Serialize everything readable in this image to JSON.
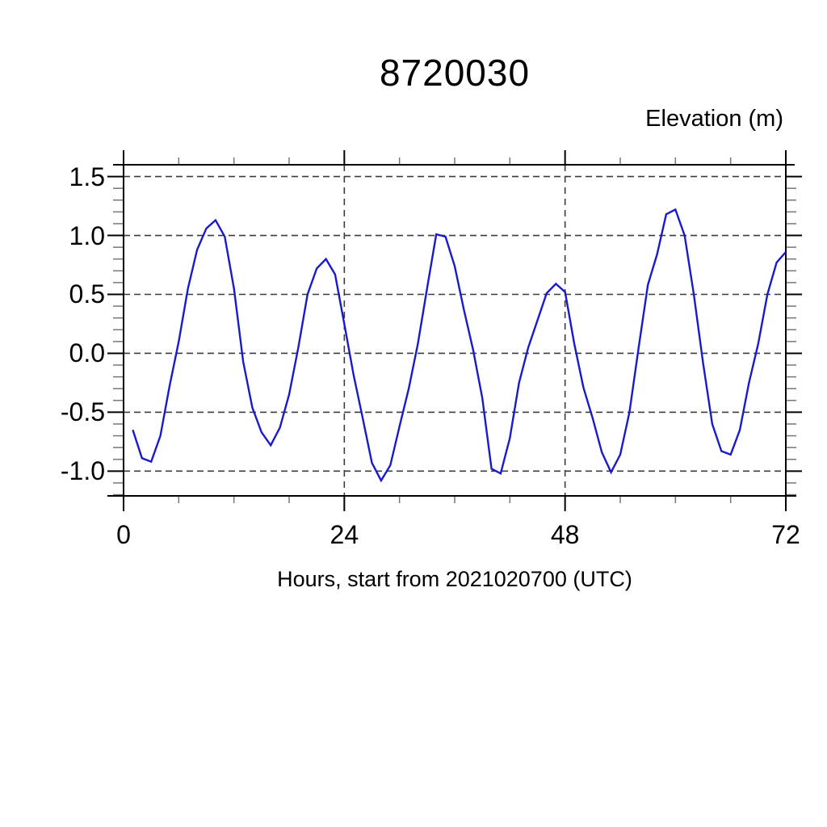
{
  "page": {
    "background": "#ffffff"
  },
  "chart_data": {
    "type": "line",
    "title": "8720030",
    "right_axis_label": "Elevation (m)",
    "xlabel": "Hours, start from 2021020700 (UTC)",
    "xlim": [
      0,
      72
    ],
    "ylim": [
      -1.21,
      1.6
    ],
    "xticks_major": [
      0,
      24,
      48,
      72
    ],
    "xtick_labels": [
      "0",
      "24",
      "48",
      "72"
    ],
    "xtick_minor_step": 6,
    "yticks_major": [
      1.5,
      1.0,
      0.5,
      0.0,
      -0.5,
      -1.0
    ],
    "ytick_labels": [
      "1.5",
      "1.0",
      "0.5",
      "0.0",
      "-0.5",
      "-1.0"
    ],
    "ytick_minor_step": 0.1,
    "grid": {
      "horizontal_at": [
        1.5,
        1.0,
        0.5,
        0.0,
        -0.5,
        -1.0
      ],
      "vertical_at": [
        24,
        48
      ],
      "style": "dashed",
      "color": "#3c3c3c"
    },
    "axis_color": "#000000",
    "series": [
      {
        "name": "elevation",
        "color": "#1a1acd",
        "hours": [
          1,
          2,
          3,
          4,
          5,
          6,
          7,
          8,
          9,
          10,
          11,
          12,
          13,
          14,
          15,
          16,
          17,
          18,
          19,
          20,
          21,
          22,
          23,
          24,
          25,
          26,
          27,
          28,
          29,
          30,
          31,
          32,
          33,
          34,
          35,
          36,
          37,
          38,
          39,
          40,
          41,
          42,
          43,
          44,
          45,
          46,
          47,
          48,
          49,
          50,
          51,
          52,
          53,
          54,
          55,
          56,
          57,
          58,
          59,
          60,
          61,
          62,
          63,
          64,
          65,
          66,
          67,
          68,
          69,
          70,
          71,
          72
        ],
        "values": [
          -0.65,
          -0.89,
          -0.92,
          -0.7,
          -0.28,
          0.1,
          0.55,
          0.88,
          1.06,
          1.13,
          0.99,
          0.55,
          -0.07,
          -0.46,
          -0.67,
          -0.78,
          -0.63,
          -0.35,
          0.05,
          0.5,
          0.72,
          0.8,
          0.67,
          0.25,
          -0.18,
          -0.55,
          -0.93,
          -1.08,
          -0.95,
          -0.62,
          -0.3,
          0.08,
          0.55,
          1.01,
          0.99,
          0.74,
          0.37,
          0.03,
          -0.38,
          -0.98,
          -1.02,
          -0.72,
          -0.25,
          0.05,
          0.28,
          0.51,
          0.59,
          0.52,
          0.08,
          -0.29,
          -0.55,
          -0.84,
          -1.01,
          -0.86,
          -0.5,
          0.05,
          0.58,
          0.84,
          1.18,
          1.22,
          1.0,
          0.5,
          -0.08,
          -0.6,
          -0.83,
          -0.86,
          -0.65,
          -0.25,
          0.08,
          0.5,
          0.77,
          0.86
        ]
      }
    ]
  }
}
